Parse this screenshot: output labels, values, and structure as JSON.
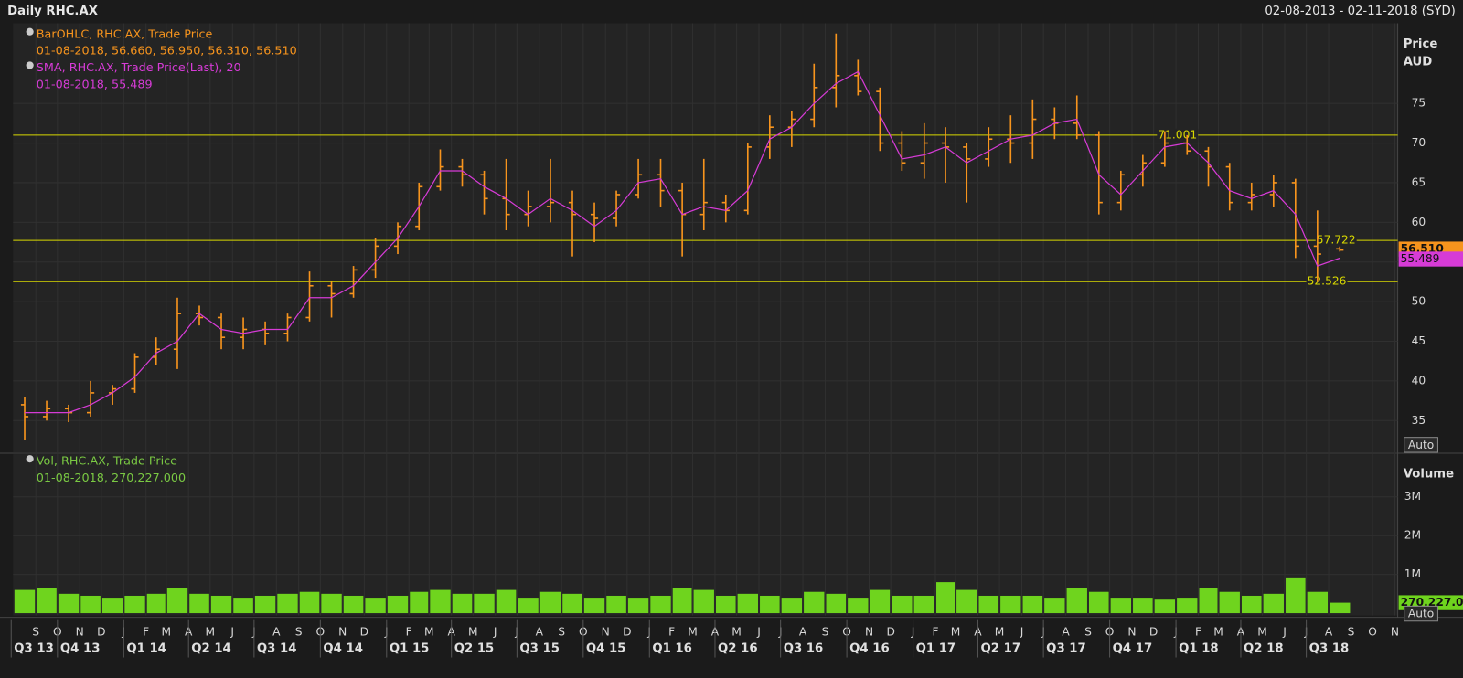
{
  "header": {
    "title": "Daily RHC.AX",
    "range": "02-08-2013 - 02-11-2018 (SYD)"
  },
  "chart_data": [
    {
      "type": "ohlc",
      "y_title": "Price",
      "y_unit": "AUD",
      "color": "#f7941d",
      "sma_color": "#d63bd6",
      "hline_color": "#d8d800",
      "legend": [
        {
          "name": "BarOHLC, RHC.AX, Trade Price",
          "detail": "01-08-2018, 56.660, 56.950, 56.310, 56.510",
          "color": "#f7941d"
        },
        {
          "name": "SMA, RHC.AX, Trade Price(Last),  20",
          "detail": "01-08-2018, 55.489",
          "color": "#d63bd6"
        }
      ],
      "x": [
        "2013-08",
        "2013-09",
        "2013-10",
        "2013-11",
        "2013-12",
        "2014-01",
        "2014-02",
        "2014-03",
        "2014-04",
        "2014-05",
        "2014-06",
        "2014-07",
        "2014-08",
        "2014-09",
        "2014-10",
        "2014-11",
        "2014-12",
        "2015-01",
        "2015-02",
        "2015-03",
        "2015-04",
        "2015-05",
        "2015-06",
        "2015-07",
        "2015-08",
        "2015-09",
        "2015-10",
        "2015-11",
        "2015-12",
        "2016-01",
        "2016-02",
        "2016-03",
        "2016-04",
        "2016-05",
        "2016-06",
        "2016-07",
        "2016-08",
        "2016-09",
        "2016-10",
        "2016-11",
        "2016-12",
        "2017-01",
        "2017-02",
        "2017-03",
        "2017-04",
        "2017-05",
        "2017-06",
        "2017-07",
        "2017-08",
        "2017-09",
        "2017-10",
        "2017-11",
        "2017-12",
        "2018-01",
        "2018-02",
        "2018-03",
        "2018-04",
        "2018-05",
        "2018-06",
        "2018-07",
        "2018-08"
      ],
      "open": [
        37,
        35.5,
        36.5,
        36,
        38.5,
        39,
        43,
        44,
        48.5,
        48,
        45.5,
        46.5,
        46,
        48,
        52,
        51,
        54,
        57,
        59.5,
        64.5,
        67,
        66,
        63,
        61,
        62,
        62.5,
        61,
        60.5,
        63.5,
        66,
        64,
        61,
        62.5,
        61.5,
        69.5,
        72,
        73,
        77,
        78.5,
        76.5,
        70,
        67.5,
        70,
        69.5,
        68,
        70.5,
        70,
        73,
        72.5,
        71,
        62.5,
        66,
        67.5,
        70,
        69,
        67,
        62.5,
        63.5,
        65,
        57,
        56.66
      ],
      "high": [
        38,
        37.5,
        37,
        40,
        39.5,
        43.5,
        45.5,
        50.5,
        49.5,
        48.5,
        48,
        47.5,
        48.5,
        53.8,
        52.5,
        54.5,
        58,
        60,
        65,
        69.2,
        68,
        66.5,
        68,
        64,
        68,
        64,
        62.5,
        64,
        68,
        68,
        65,
        68,
        63.5,
        70,
        73.5,
        74,
        80,
        83.8,
        80.5,
        77,
        71.5,
        72.5,
        72,
        70,
        72,
        73.5,
        75.5,
        74.5,
        76,
        71.5,
        66.5,
        68.5,
        71.5,
        71,
        69.5,
        67.5,
        65,
        66,
        65.5,
        61.5,
        56.95
      ],
      "low": [
        32.5,
        35,
        34.8,
        35.5,
        37,
        38.5,
        42,
        41.5,
        47,
        44,
        44,
        44.5,
        45,
        47.5,
        48,
        50.5,
        53,
        56,
        59,
        64,
        64.5,
        61,
        59,
        59.5,
        60,
        55.7,
        57.5,
        59.5,
        63,
        62,
        55.7,
        59,
        60,
        61,
        68,
        69.5,
        72,
        74.5,
        76,
        69,
        66.5,
        65.5,
        65,
        62.5,
        67,
        67.5,
        68,
        70.5,
        70.5,
        61,
        61.5,
        64.5,
        67,
        68.5,
        64.5,
        61.5,
        61.5,
        62,
        55.5,
        52.5,
        56.31
      ],
      "close": [
        35.5,
        36.5,
        36,
        38.5,
        39,
        43,
        44,
        48.5,
        48,
        45.5,
        46.5,
        46,
        48,
        52,
        51,
        54,
        57,
        59.5,
        64.5,
        67,
        66,
        63,
        61,
        62,
        62.5,
        61,
        60.5,
        63.5,
        66,
        64,
        61,
        62.5,
        61.5,
        69.5,
        72,
        73,
        77,
        78.5,
        76.5,
        70,
        67.5,
        70,
        69.5,
        68,
        70.5,
        70,
        73,
        72.5,
        71,
        62.5,
        66,
        67.5,
        70,
        69,
        67,
        62.5,
        63.5,
        65,
        57,
        56,
        56.51
      ],
      "sma": [
        36,
        36,
        36,
        37,
        38.5,
        40.5,
        43.5,
        45,
        48.5,
        46.5,
        46,
        46.5,
        46.5,
        50.5,
        50.5,
        52,
        55,
        58,
        62,
        66.5,
        66.5,
        64.5,
        63,
        61,
        63,
        61.5,
        59.5,
        61.5,
        65,
        65.5,
        61,
        62,
        61.5,
        64,
        70.5,
        72,
        75,
        77.5,
        79,
        73.5,
        68,
        68.5,
        69.5,
        67.5,
        69,
        70.5,
        71,
        72.5,
        73,
        66,
        63.5,
        66.5,
        69.5,
        70,
        67.5,
        64,
        63,
        64,
        61,
        54.5,
        55.489
      ],
      "xlim": [
        "2013-08",
        "2018-11"
      ],
      "ylim": [
        31,
        85.1
      ],
      "yticks": [
        35,
        40,
        45,
        50,
        55,
        60,
        65,
        70,
        75
      ],
      "grid": true,
      "hlines": [
        71.001,
        57.722,
        52.526
      ],
      "last_values": [
        {
          "value": 56.51,
          "label": "56.510",
          "color": "#f7941d"
        },
        {
          "value": 55.489,
          "label": "55.489",
          "color": "#d63bd6"
        }
      ],
      "button": "Auto"
    },
    {
      "type": "bar",
      "y_title": "Volume",
      "color": "#6fd41e",
      "legend": [
        {
          "name": "Vol, RHC.AX, Trade Price",
          "detail": "01-08-2018, 270,227.000",
          "color": "#7ac943"
        }
      ],
      "x": [
        "2013-08",
        "2013-09",
        "2013-10",
        "2013-11",
        "2013-12",
        "2014-01",
        "2014-02",
        "2014-03",
        "2014-04",
        "2014-05",
        "2014-06",
        "2014-07",
        "2014-08",
        "2014-09",
        "2014-10",
        "2014-11",
        "2014-12",
        "2015-01",
        "2015-02",
        "2015-03",
        "2015-04",
        "2015-05",
        "2015-06",
        "2015-07",
        "2015-08",
        "2015-09",
        "2015-10",
        "2015-11",
        "2015-12",
        "2016-01",
        "2016-02",
        "2016-03",
        "2016-04",
        "2016-05",
        "2016-06",
        "2016-07",
        "2016-08",
        "2016-09",
        "2016-10",
        "2016-11",
        "2016-12",
        "2017-01",
        "2017-02",
        "2017-03",
        "2017-04",
        "2017-05",
        "2017-06",
        "2017-07",
        "2017-08",
        "2017-09",
        "2017-10",
        "2017-11",
        "2017-12",
        "2018-01",
        "2018-02",
        "2018-03",
        "2018-04",
        "2018-05",
        "2018-06",
        "2018-07",
        "2018-08"
      ],
      "values": [
        600000,
        650000,
        500000,
        450000,
        400000,
        450000,
        500000,
        650000,
        500000,
        450000,
        400000,
        450000,
        500000,
        550000,
        500000,
        450000,
        400000,
        450000,
        550000,
        600000,
        500000,
        500000,
        600000,
        400000,
        550000,
        500000,
        400000,
        450000,
        400000,
        450000,
        650000,
        600000,
        450000,
        500000,
        450000,
        400000,
        550000,
        500000,
        400000,
        600000,
        450000,
        450000,
        800000,
        600000,
        450000,
        450000,
        450000,
        400000,
        650000,
        550000,
        400000,
        400000,
        350000,
        400000,
        650000,
        550000,
        450000,
        500000,
        900000,
        550000,
        270227
      ],
      "xlim": [
        "2013-08",
        "2018-11"
      ],
      "ylim": [
        0,
        4100000
      ],
      "yticks": [
        {
          "value": 1000000,
          "label": "1M"
        },
        {
          "value": 2000000,
          "label": "2M"
        },
        {
          "value": 3000000,
          "label": "3M"
        }
      ],
      "grid": true,
      "last_value": {
        "value": 270227,
        "label": "270,227.000"
      },
      "button": "Auto"
    }
  ],
  "x_axis": {
    "month_ticks": [
      {
        "value": "2013-09",
        "label": "S"
      },
      {
        "value": "2013-10",
        "label": "O"
      },
      {
        "value": "2013-11",
        "label": "N"
      },
      {
        "value": "2013-12",
        "label": "D"
      },
      {
        "value": "2014-01",
        "label": "J"
      },
      {
        "value": "2014-02",
        "label": "F"
      },
      {
        "value": "2014-03",
        "label": "M"
      },
      {
        "value": "2014-04",
        "label": "A"
      },
      {
        "value": "2014-05",
        "label": "M"
      },
      {
        "value": "2014-06",
        "label": "J"
      },
      {
        "value": "2014-07",
        "label": "J"
      },
      {
        "value": "2014-08",
        "label": "A"
      },
      {
        "value": "2014-09",
        "label": "S"
      },
      {
        "value": "2014-10",
        "label": "O"
      },
      {
        "value": "2014-11",
        "label": "N"
      },
      {
        "value": "2014-12",
        "label": "D"
      },
      {
        "value": "2015-01",
        "label": "J"
      },
      {
        "value": "2015-02",
        "label": "F"
      },
      {
        "value": "2015-03",
        "label": "M"
      },
      {
        "value": "2015-04",
        "label": "A"
      },
      {
        "value": "2015-05",
        "label": "M"
      },
      {
        "value": "2015-06",
        "label": "J"
      },
      {
        "value": "2015-07",
        "label": "J"
      },
      {
        "value": "2015-08",
        "label": "A"
      },
      {
        "value": "2015-09",
        "label": "S"
      },
      {
        "value": "2015-10",
        "label": "O"
      },
      {
        "value": "2015-11",
        "label": "N"
      },
      {
        "value": "2015-12",
        "label": "D"
      },
      {
        "value": "2016-01",
        "label": "J"
      },
      {
        "value": "2016-02",
        "label": "F"
      },
      {
        "value": "2016-03",
        "label": "M"
      },
      {
        "value": "2016-04",
        "label": "A"
      },
      {
        "value": "2016-05",
        "label": "M"
      },
      {
        "value": "2016-06",
        "label": "J"
      },
      {
        "value": "2016-07",
        "label": "J"
      },
      {
        "value": "2016-08",
        "label": "A"
      },
      {
        "value": "2016-09",
        "label": "S"
      },
      {
        "value": "2016-10",
        "label": "O"
      },
      {
        "value": "2016-11",
        "label": "N"
      },
      {
        "value": "2016-12",
        "label": "D"
      },
      {
        "value": "2017-01",
        "label": "J"
      },
      {
        "value": "2017-02",
        "label": "F"
      },
      {
        "value": "2017-03",
        "label": "M"
      },
      {
        "value": "2017-04",
        "label": "A"
      },
      {
        "value": "2017-05",
        "label": "M"
      },
      {
        "value": "2017-06",
        "label": "J"
      },
      {
        "value": "2017-07",
        "label": "J"
      },
      {
        "value": "2017-08",
        "label": "A"
      },
      {
        "value": "2017-09",
        "label": "S"
      },
      {
        "value": "2017-10",
        "label": "O"
      },
      {
        "value": "2017-11",
        "label": "N"
      },
      {
        "value": "2017-12",
        "label": "D"
      },
      {
        "value": "2018-01",
        "label": "J"
      },
      {
        "value": "2018-02",
        "label": "F"
      },
      {
        "value": "2018-03",
        "label": "M"
      },
      {
        "value": "2018-04",
        "label": "A"
      },
      {
        "value": "2018-05",
        "label": "M"
      },
      {
        "value": "2018-06",
        "label": "J"
      },
      {
        "value": "2018-07",
        "label": "J"
      },
      {
        "value": "2018-08",
        "label": "A"
      },
      {
        "value": "2018-09",
        "label": "S"
      },
      {
        "value": "2018-10",
        "label": "O"
      },
      {
        "value": "2018-11",
        "label": "N"
      }
    ],
    "quarter_ticks": [
      {
        "value": "2013-07",
        "label": "Q3 13"
      },
      {
        "value": "2013-10",
        "label": "Q4 13"
      },
      {
        "value": "2014-01",
        "label": "Q1 14"
      },
      {
        "value": "2014-04",
        "label": "Q2 14"
      },
      {
        "value": "2014-07",
        "label": "Q3 14"
      },
      {
        "value": "2014-10",
        "label": "Q4 14"
      },
      {
        "value": "2015-01",
        "label": "Q1 15"
      },
      {
        "value": "2015-04",
        "label": "Q2 15"
      },
      {
        "value": "2015-07",
        "label": "Q3 15"
      },
      {
        "value": "2015-10",
        "label": "Q4 15"
      },
      {
        "value": "2016-01",
        "label": "Q1 16"
      },
      {
        "value": "2016-04",
        "label": "Q2 16"
      },
      {
        "value": "2016-07",
        "label": "Q3 16"
      },
      {
        "value": "2016-10",
        "label": "Q4 16"
      },
      {
        "value": "2017-01",
        "label": "Q1 17"
      },
      {
        "value": "2017-04",
        "label": "Q2 17"
      },
      {
        "value": "2017-07",
        "label": "Q3 17"
      },
      {
        "value": "2017-10",
        "label": "Q4 17"
      },
      {
        "value": "2018-01",
        "label": "Q1 18"
      },
      {
        "value": "2018-04",
        "label": "Q2 18"
      },
      {
        "value": "2018-07",
        "label": "Q3 18"
      }
    ]
  }
}
